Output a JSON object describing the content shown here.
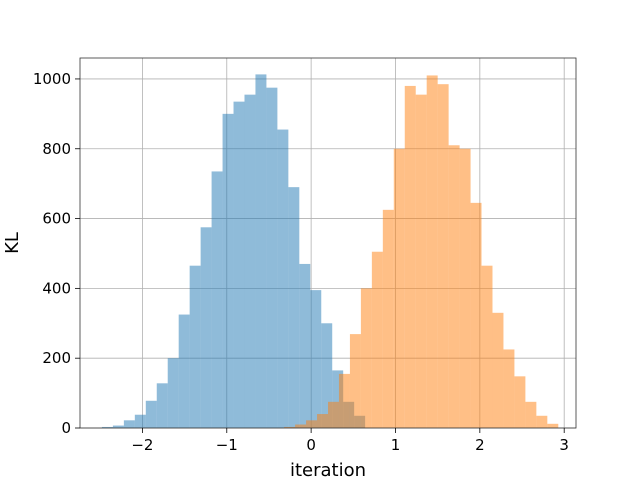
{
  "chart_data": {
    "type": "bar",
    "title": "",
    "xlabel": "iteration",
    "ylabel": "KL",
    "xlim": [
      -2.74,
      3.14
    ],
    "ylim": [
      0,
      1060
    ],
    "x_ticks": [
      -2,
      -1,
      0,
      1,
      2,
      3
    ],
    "x_tick_labels": [
      "−2",
      "−1",
      "0",
      "1",
      "2",
      "3"
    ],
    "y_ticks": [
      0,
      200,
      400,
      600,
      800,
      1000
    ],
    "y_tick_labels": [
      "0",
      "200",
      "400",
      "600",
      "800",
      "1000"
    ],
    "grid": true,
    "legend": "none",
    "series": [
      {
        "color": "#1f77b4",
        "alpha": 0.5,
        "bin_edges": [
          -2.48,
          -2.35,
          -2.22,
          -2.09,
          -1.96,
          -1.83,
          -1.7,
          -1.57,
          -1.44,
          -1.31,
          -1.18,
          -1.05,
          -0.92,
          -0.79,
          -0.66,
          -0.53,
          -0.4,
          -0.27,
          -0.14,
          -0.01,
          0.12,
          0.25,
          0.38,
          0.51,
          0.64
        ],
        "values": [
          3,
          7,
          22,
          38,
          78,
          128,
          200,
          325,
          465,
          575,
          735,
          900,
          935,
          955,
          1013,
          975,
          855,
          690,
          470,
          395,
          300,
          165,
          75,
          35
        ]
      },
      {
        "color": "#ff7f0e",
        "alpha": 0.5,
        "bin_edges": [
          -0.32,
          -0.19,
          -0.06,
          0.07,
          0.2,
          0.33,
          0.46,
          0.59,
          0.72,
          0.85,
          0.98,
          1.11,
          1.24,
          1.37,
          1.5,
          1.63,
          1.76,
          1.89,
          2.02,
          2.15,
          2.28,
          2.41,
          2.54,
          2.67,
          2.8,
          2.93
        ],
        "values": [
          3,
          10,
          22,
          40,
          75,
          155,
          269,
          400,
          505,
          625,
          800,
          980,
          955,
          1010,
          985,
          810,
          800,
          645,
          465,
          330,
          225,
          148,
          75,
          35,
          12
        ]
      }
    ]
  }
}
